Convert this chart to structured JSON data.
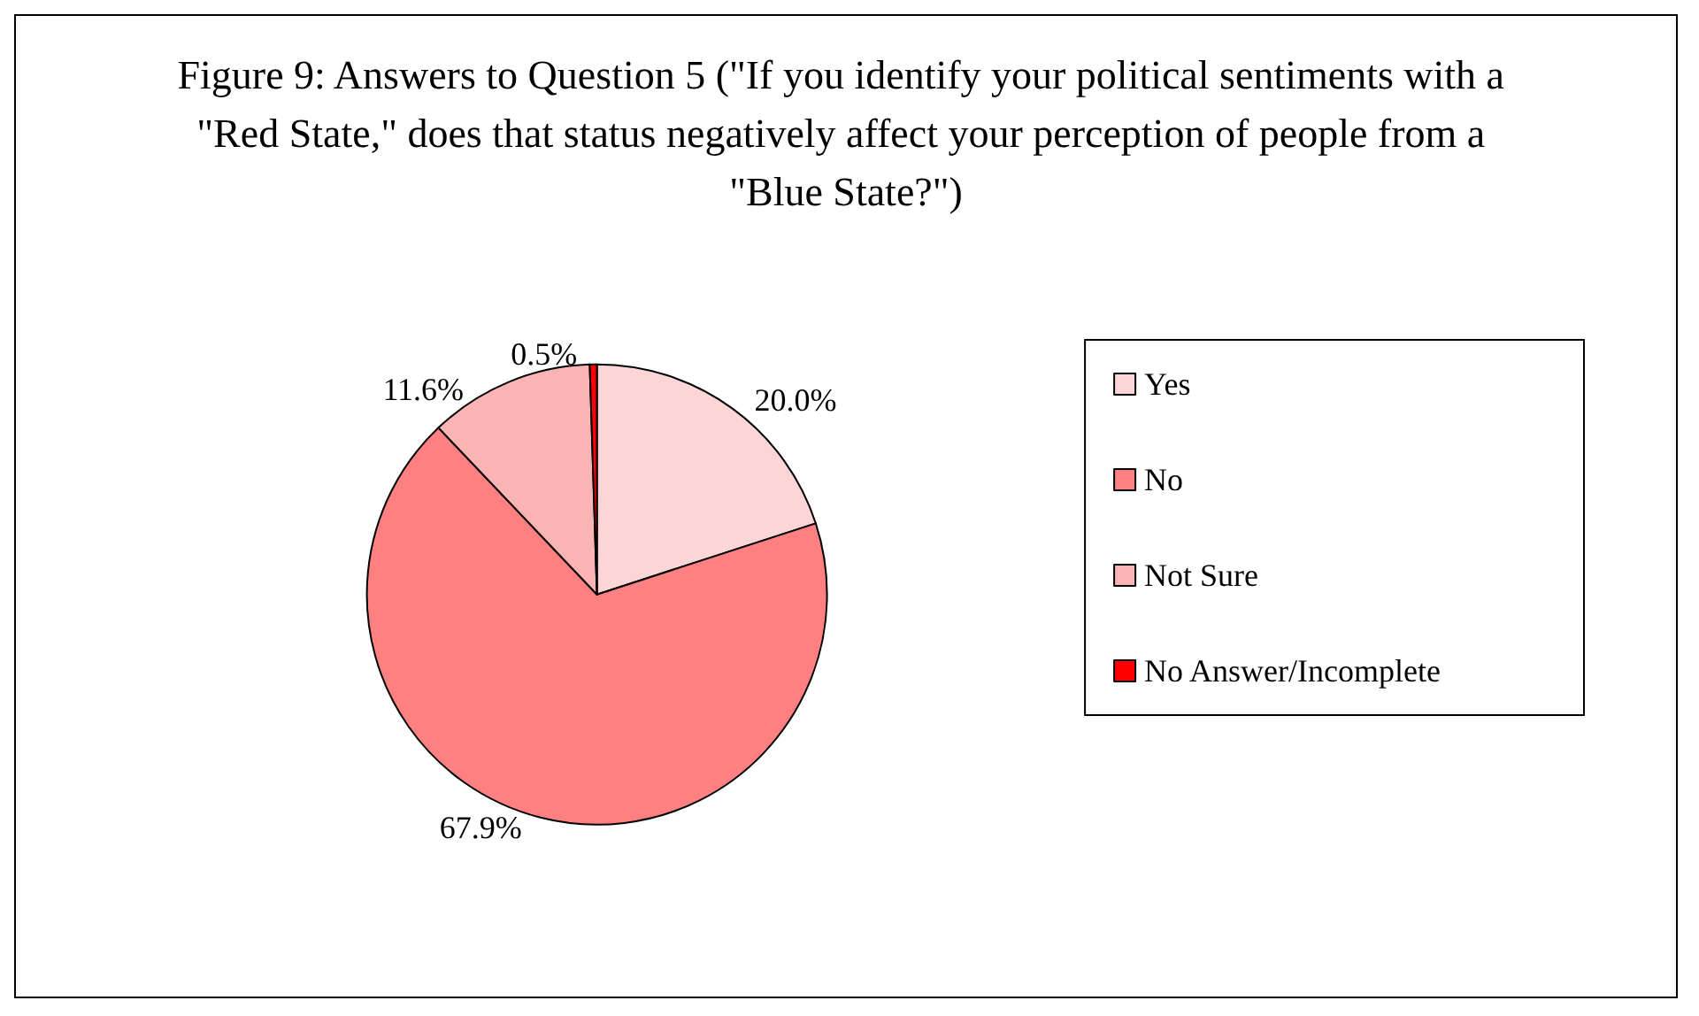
{
  "chart_data": {
    "type": "pie",
    "title": "Figure 9: Answers to Question 5 (\"If you identify your political sentiments with a \"Red State,\" does that status negatively affect your perception of people from a \"Blue State?\")",
    "categories": [
      "Yes",
      "No",
      "Not Sure",
      "No Answer/Incomplete"
    ],
    "values": [
      20.0,
      67.9,
      11.6,
      0.5
    ],
    "value_labels": [
      "20.0%",
      "67.9%",
      "11.6%",
      "0.5%"
    ],
    "colors": [
      "#fcd6d6",
      "#ff8080",
      "#fbb4b4",
      "#ff0000"
    ],
    "legend": "right"
  }
}
